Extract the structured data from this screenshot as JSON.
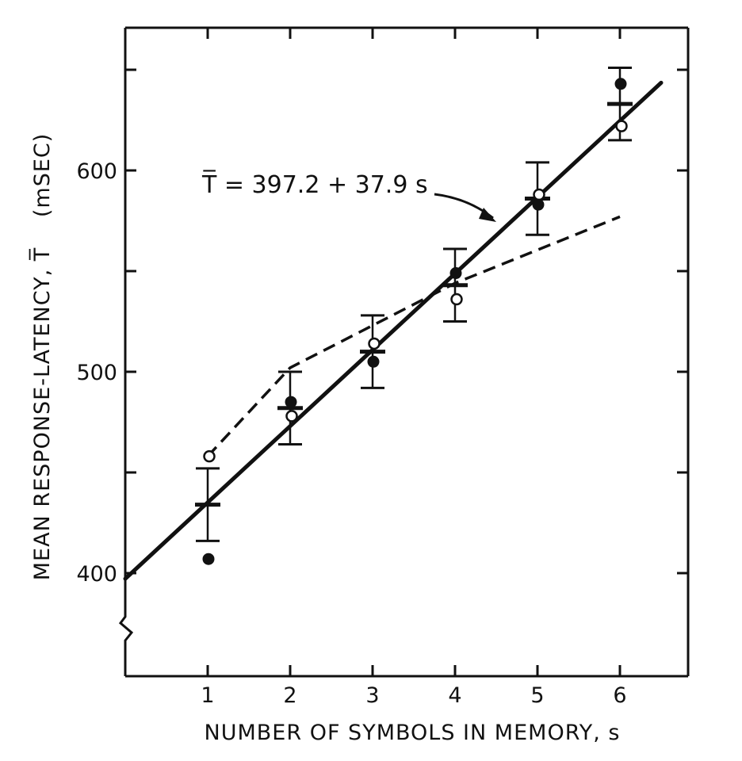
{
  "chart_data": {
    "type": "scatter",
    "xlabel": "NUMBER OF SYMBOLS IN MEMORY, s",
    "ylabel": "MEAN RESPONSE-LATENCY, T̅   (mSEC)",
    "ylabel_main": "MEAN RESPONSE-LATENCY, T̅",
    "ylabel_unit": "(mSEC)",
    "xlim": [
      0,
      6.5
    ],
    "ylim": [
      352,
      667
    ],
    "x_ticks": [
      "1",
      "2",
      "3",
      "4",
      "5",
      "6"
    ],
    "y_tick_labels": [
      {
        "value": 400,
        "label": "400"
      },
      {
        "value": 500,
        "label": "500"
      },
      {
        "value": 600,
        "label": "600"
      }
    ],
    "y_minor_ticks": [
      450,
      550,
      650
    ],
    "axis_break": "zigzag on y-axis below 400",
    "annotation": {
      "text": "T̅ = 397.2 + 37.9 s",
      "points_to": "fitted line"
    },
    "fit_line": {
      "name": "Fitted line",
      "style": "solid",
      "intercept": 397.2,
      "slope": 37.9,
      "x_range": [
        0,
        6.5
      ]
    },
    "series": [
      {
        "name": "Mean (filled)",
        "marker": "filled-circle",
        "x": [
          1,
          2,
          3,
          4,
          5,
          6
        ],
        "y": [
          407,
          485,
          505,
          549,
          583,
          643
        ]
      },
      {
        "name": "Mean (open)",
        "marker": "open-circle",
        "x": [
          1,
          2,
          3,
          4,
          5,
          6
        ],
        "y": [
          458,
          478,
          514,
          536,
          588,
          622
        ]
      },
      {
        "name": "Predicted (dashed)",
        "style": "dashed",
        "x": [
          1,
          2,
          4,
          6
        ],
        "y": [
          458,
          502,
          544,
          577
        ]
      }
    ],
    "error_bars": [
      {
        "x": 1,
        "center": 434,
        "low": 416,
        "high": 452
      },
      {
        "x": 2,
        "center": 482,
        "low": 464,
        "high": 500
      },
      {
        "x": 3,
        "center": 510,
        "low": 492,
        "high": 528
      },
      {
        "x": 4,
        "center": 543,
        "low": 525,
        "high": 561
      },
      {
        "x": 5,
        "center": 586,
        "low": 568,
        "high": 604
      },
      {
        "x": 6,
        "center": 633,
        "low": 615,
        "high": 651
      }
    ]
  }
}
